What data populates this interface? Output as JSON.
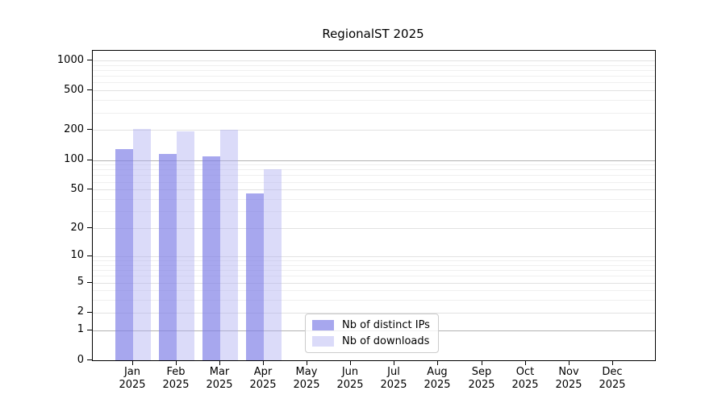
{
  "chart_data": {
    "type": "bar",
    "title": "RegionalST 2025",
    "categories": [
      "Jan",
      "Feb",
      "Mar",
      "Apr",
      "May",
      "Jun",
      "Jul",
      "Aug",
      "Sep",
      "Oct",
      "Nov",
      "Dec"
    ],
    "year_label": "2025",
    "series": [
      {
        "name": "Nb of distinct IPs",
        "color": "rgba(125,125,230,0.68)",
        "values": [
          128,
          116,
          109,
          46,
          null,
          null,
          null,
          null,
          null,
          null,
          null,
          null
        ]
      },
      {
        "name": "Nb of downloads",
        "color": "rgba(170,170,240,0.42)",
        "values": [
          205,
          196,
          200,
          80,
          null,
          null,
          null,
          null,
          null,
          null,
          null,
          null
        ]
      }
    ],
    "xlabel": "",
    "ylabel": "",
    "y_ticks": [
      0,
      1,
      2,
      5,
      10,
      20,
      50,
      100,
      200,
      500,
      1000
    ],
    "y_minor_gridlines": [
      3,
      4,
      6,
      7,
      8,
      9,
      30,
      40,
      60,
      70,
      80,
      90,
      300,
      400,
      600,
      700,
      800,
      900
    ],
    "y_emphasized_gridlines": [
      1,
      100
    ],
    "scale": "log10(value+1)",
    "ylim": [
      0,
      1250
    ],
    "grid": true,
    "legend_position": "bottom-center",
    "colors": {
      "grid_minor": "#efefef",
      "grid_major": "#e2e2e2",
      "grid_dark": "#b3b3b3",
      "axis": "#000000",
      "background": "#ffffff"
    }
  }
}
